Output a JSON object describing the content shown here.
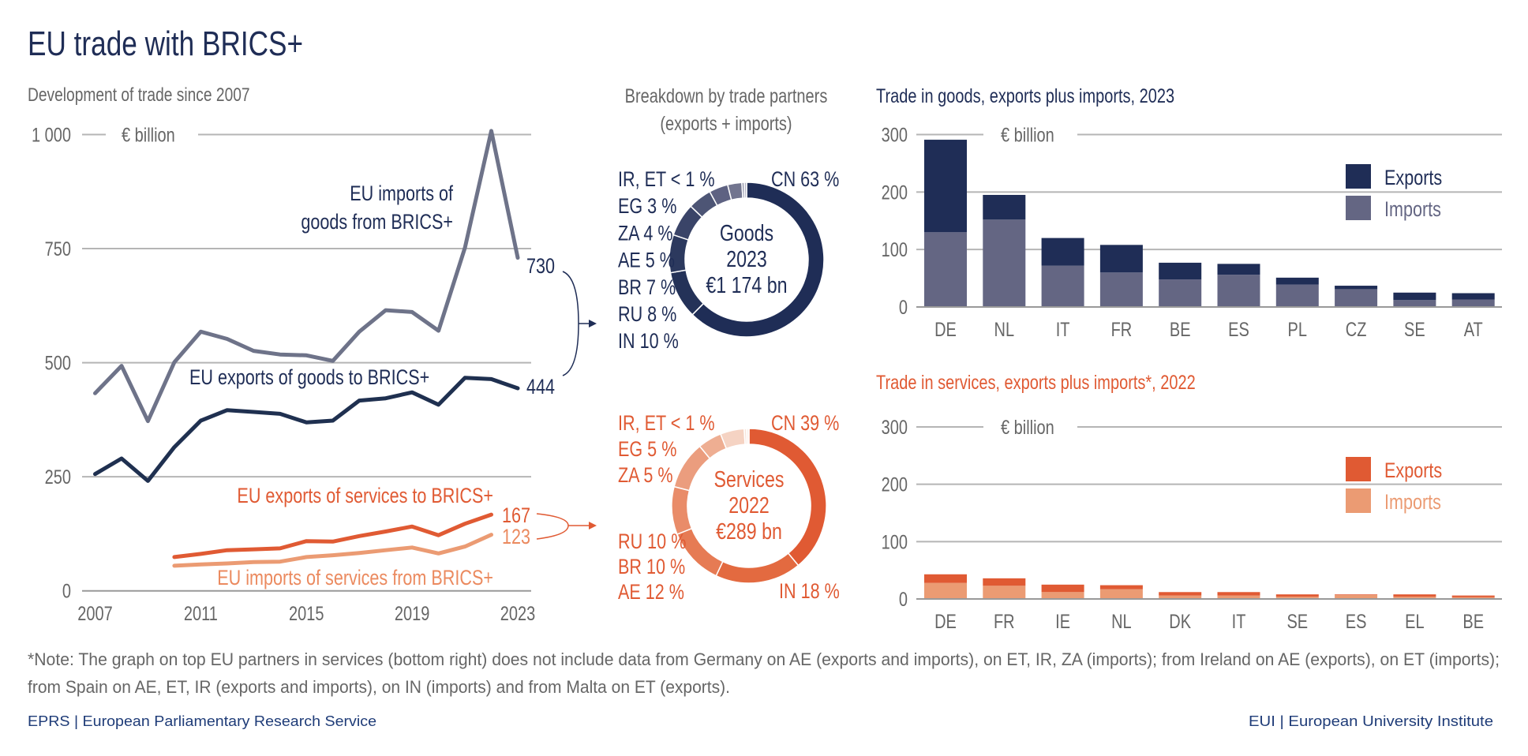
{
  "title": "EU trade with BRICS+",
  "colors": {
    "navy": "#1f2d56",
    "goods_imports_line": "#6e7389",
    "goods_imports_bar": "#646683",
    "orange": "#e05a33",
    "light_orange": "#eb9b73",
    "grey_text": "#666666",
    "grid": "#b5b5b5"
  },
  "footnote": [
    "*Note: The graph on top EU partners in services (bottom right) does not include data from Germany on AE (exports and imports), on ET, IR, ZA (imports); from Ireland on AE (exports), on ET (imports);",
    "from Spain on AE, ET, IR (exports and imports), on IN (imports) and from Malta on ET (exports)."
  ],
  "footer": {
    "left": "EPRS | European Parliamentary Research Service",
    "right": "EUI | European University Institute"
  },
  "chart_data": [
    {
      "type": "line",
      "title": "Development of trade since 2007",
      "unit": "€ billion",
      "ylim": [
        0,
        1000
      ],
      "yticks": [
        "0",
        "250",
        "500",
        "750",
        "1 000"
      ],
      "ytick_values": [
        0,
        250,
        500,
        750,
        1000
      ],
      "xticks": [
        "2007",
        "2011",
        "2015",
        "2019",
        "2023"
      ],
      "grid": true,
      "series": [
        {
          "name": "EU imports of goods from BRICS+",
          "label_lines": [
            "EU imports of",
            "goods from BRICS+"
          ],
          "color": "#6e7389",
          "end_label": "730",
          "x": [
            2007,
            2008,
            2009,
            2010,
            2011,
            2012,
            2013,
            2014,
            2015,
            2016,
            2017,
            2018,
            2019,
            2020,
            2021,
            2022,
            2023
          ],
          "values": [
            433,
            493,
            372,
            501,
            568,
            552,
            526,
            518,
            516,
            504,
            568,
            615,
            611,
            570,
            752,
            1008,
            730
          ]
        },
        {
          "name": "EU exports of goods to BRICS+",
          "label_lines": [
            "EU exports of goods to BRICS+"
          ],
          "color": "#1f3050",
          "end_label": "444",
          "x": [
            2007,
            2008,
            2009,
            2010,
            2011,
            2012,
            2013,
            2014,
            2015,
            2016,
            2017,
            2018,
            2019,
            2020,
            2021,
            2022,
            2023
          ],
          "values": [
            256,
            290,
            241,
            315,
            373,
            396,
            392,
            388,
            369,
            373,
            417,
            422,
            435,
            408,
            467,
            464,
            444
          ]
        },
        {
          "name": "EU exports of services to BRICS+",
          "label_lines": [
            "EU exports of services to BRICS+"
          ],
          "color": "#e05a33",
          "end_label": "167",
          "x": [
            2010,
            2011,
            2012,
            2013,
            2014,
            2015,
            2016,
            2017,
            2018,
            2019,
            2020,
            2021,
            2022
          ],
          "values": [
            74,
            81,
            89,
            91,
            93,
            109,
            108,
            120,
            130,
            141,
            122,
            147,
            167
          ]
        },
        {
          "name": "EU imports of services from BRICS+",
          "label_lines": [
            "EU imports of services from BRICS+"
          ],
          "color": "#eb9b73",
          "end_label": "123",
          "x": [
            2010,
            2011,
            2012,
            2013,
            2014,
            2015,
            2016,
            2017,
            2018,
            2019,
            2020,
            2021,
            2022
          ],
          "values": [
            55,
            58,
            60,
            63,
            64,
            74,
            78,
            83,
            89,
            95,
            82,
            97,
            123
          ]
        }
      ]
    },
    {
      "type": "pie",
      "title_lines": [
        "Breakdown by trade partners",
        "(exports + imports)"
      ],
      "center_lines": [
        "Goods",
        "2023",
        "€1 174 bn"
      ],
      "color": "#1f2d56",
      "slices": [
        {
          "partner": "CN",
          "value": 63,
          "color": "#1f2d56"
        },
        {
          "partner": "IN",
          "value": 10,
          "color": "#243258"
        },
        {
          "partner": "RU",
          "value": 8,
          "color": "#2c395e"
        },
        {
          "partner": "BR",
          "value": 7,
          "color": "#3a4468"
        },
        {
          "partner": "AE",
          "value": 5,
          "color": "#4d5575"
        },
        {
          "partner": "ZA",
          "value": 4,
          "color": "#5e6282"
        },
        {
          "partner": "EG",
          "value": 3,
          "color": "#72758f"
        },
        {
          "partner": "IR",
          "value": 0.5,
          "color": "#8c8ea5"
        },
        {
          "partner": "ET",
          "value": 0.5,
          "color": "#b3b4c4"
        }
      ],
      "labels_left": [
        "IR, ET < 1 %",
        "EG 3 %",
        "ZA 4 %",
        "AE 5 %",
        "BR 7 %",
        "RU 8 %",
        "IN 10 %"
      ],
      "label_right": "CN 63 %"
    },
    {
      "type": "pie",
      "center_lines": [
        "Services",
        "2022",
        "€289 bn"
      ],
      "color": "#e05a33",
      "slices": [
        {
          "partner": "CN",
          "value": 39,
          "color": "#e05a33"
        },
        {
          "partner": "IN",
          "value": 18,
          "color": "#e36a40"
        },
        {
          "partner": "AE",
          "value": 12,
          "color": "#e67b54"
        },
        {
          "partner": "BR",
          "value": 10,
          "color": "#e98c69"
        },
        {
          "partner": "RU",
          "value": 10,
          "color": "#eb9d7e"
        },
        {
          "partner": "ZA",
          "value": 5,
          "color": "#eeae92"
        },
        {
          "partner": "EG",
          "value": 5,
          "color": "#f5d3c3"
        },
        {
          "partner": "IR",
          "value": 0.5,
          "color": "#f8e3d9"
        },
        {
          "partner": "ET",
          "value": 0.5,
          "color": "#fbeee8"
        }
      ],
      "labels_left_top": [
        "IR, ET < 1 %",
        "EG 5 %",
        "ZA 5 %"
      ],
      "labels_left_bottom": [
        "RU 10 %",
        "BR 10 %",
        "AE 12 %"
      ],
      "label_right_top": "CN 39 %",
      "label_right_bottom": "IN 18 %"
    },
    {
      "type": "bar",
      "stacked": true,
      "title": "Trade in goods, exports plus imports, 2023",
      "unit": "€ billion",
      "ylim": [
        0,
        300
      ],
      "yticks": [
        "0",
        "100",
        "200",
        "300"
      ],
      "ytick_values": [
        0,
        100,
        200,
        300
      ],
      "legend": "top-right",
      "categories": [
        "DE",
        "NL",
        "IT",
        "FR",
        "BE",
        "ES",
        "PL",
        "CZ",
        "SE",
        "AT"
      ],
      "series": [
        {
          "name": "Imports",
          "color": "#646683",
          "values": [
            130,
            152,
            72,
            60,
            48,
            56,
            39,
            31,
            12,
            13
          ]
        },
        {
          "name": "Exports",
          "color": "#1f2d56",
          "values": [
            161,
            43,
            48,
            48,
            29,
            19,
            12,
            6,
            13,
            11
          ]
        }
      ]
    },
    {
      "type": "bar",
      "stacked": true,
      "title": "Trade in services, exports plus imports*, 2022",
      "unit": "€ billion",
      "ylim": [
        0,
        300
      ],
      "yticks": [
        "0",
        "100",
        "200",
        "300"
      ],
      "ytick_values": [
        0,
        100,
        200,
        300
      ],
      "legend": "top-right",
      "categories": [
        "DE",
        "FR",
        "IE",
        "NL",
        "DK",
        "IT",
        "SE",
        "ES",
        "EL",
        "BE"
      ],
      "series": [
        {
          "name": "Imports",
          "color": "#eb9b73",
          "values": [
            28,
            23,
            12,
            17,
            6,
            6,
            4,
            7,
            4,
            3
          ]
        },
        {
          "name": "Exports",
          "color": "#e05a33",
          "values": [
            15,
            13,
            13,
            7,
            6,
            6,
            4,
            1,
            4,
            3
          ]
        }
      ]
    }
  ]
}
